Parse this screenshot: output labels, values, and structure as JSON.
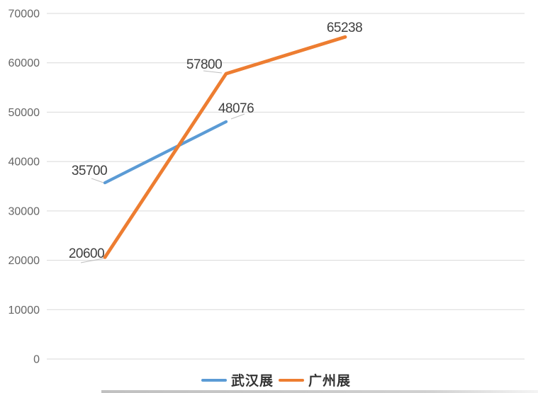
{
  "chart_data": {
    "type": "line",
    "title": "",
    "series": [
      {
        "name": "武汉展",
        "color": "#5B9BD5",
        "values": [
          35700,
          48076
        ],
        "data_labels": [
          "35700",
          "48076"
        ]
      },
      {
        "name": "广州展",
        "color": "#ED7D31",
        "values": [
          20600,
          57800,
          65238
        ],
        "data_labels": [
          "20600",
          "57800",
          "65238"
        ]
      }
    ],
    "y_axis": {
      "min": 0,
      "max": 70000,
      "tick_step": 10000,
      "tick_labels": [
        "0",
        "10000",
        "20000",
        "30000",
        "40000",
        "50000",
        "60000",
        "70000"
      ]
    },
    "x_axis": {
      "tick_labels": []
    },
    "grid": "horizontal",
    "legend_position": "bottom"
  },
  "colors": {
    "background": "#FFFFFF",
    "gridline": "#D9D9D9",
    "leader_line": "#BFBFBF",
    "axis_text": "#666666",
    "data_label_text": "#404040",
    "legend_text": "#333333",
    "series_blue": "#5B9BD5",
    "series_orange": "#ED7D31"
  }
}
